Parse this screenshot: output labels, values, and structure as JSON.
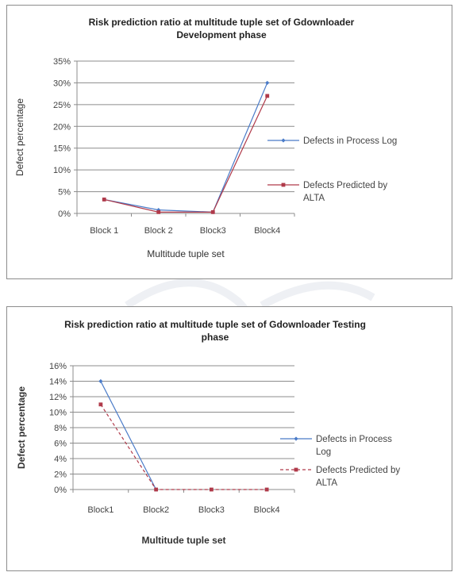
{
  "colors": {
    "series_blue": "#4a7bc8",
    "series_red": "#b03a4a",
    "grid": "#8c8c8c",
    "panel_border": "#8c8c8c"
  },
  "chart_data": [
    {
      "type": "line",
      "title_lines": [
        "Risk prediction ratio at multitude tuple set of Gdownloader",
        "Development phase"
      ],
      "xlabel": "Multitude tuple set",
      "ylabel": "Defect percentage",
      "categories": [
        "Block 1",
        "Block 2",
        "Block3",
        "Block4"
      ],
      "y_ticks": [
        "0%",
        "5%",
        "10%",
        "15%",
        "20%",
        "25%",
        "30%",
        "35%"
      ],
      "ylim": [
        0,
        35
      ],
      "grid": true,
      "legend_position": "right",
      "series": [
        {
          "name_lines": [
            "Defects in Process Log"
          ],
          "values": [
            3.2,
            0.8,
            0.3,
            30
          ],
          "color_key": "series_blue",
          "dashed": false,
          "marker": "diamond"
        },
        {
          "name_lines": [
            "Defects Predicted by",
            "ALTA"
          ],
          "values": [
            3.2,
            0.3,
            0.3,
            27
          ],
          "color_key": "series_red",
          "dashed": false,
          "marker": "square"
        }
      ]
    },
    {
      "type": "line",
      "title_lines": [
        "Risk prediction ratio at multitude tuple set of Gdownloader Testing",
        "phase"
      ],
      "xlabel": "Multitude tuple set",
      "ylabel": "Defect percentage",
      "categories": [
        "Block1",
        "Block2",
        "Block3",
        "Block4"
      ],
      "y_ticks": [
        "0%",
        "2%",
        "4%",
        "6%",
        "8%",
        "10%",
        "12%",
        "14%",
        "16%"
      ],
      "ylim": [
        0,
        16
      ],
      "grid": true,
      "legend_position": "right",
      "series": [
        {
          "name_lines": [
            "Defects in Process",
            "Log"
          ],
          "values": [
            14,
            0,
            null,
            null
          ],
          "color_key": "series_blue",
          "dashed": false,
          "marker": "diamond"
        },
        {
          "name_lines": [
            "Defects Predicted by",
            "ALTA"
          ],
          "values": [
            11,
            0,
            0,
            0
          ],
          "color_key": "series_red",
          "dashed": true,
          "marker": "square"
        }
      ]
    }
  ]
}
